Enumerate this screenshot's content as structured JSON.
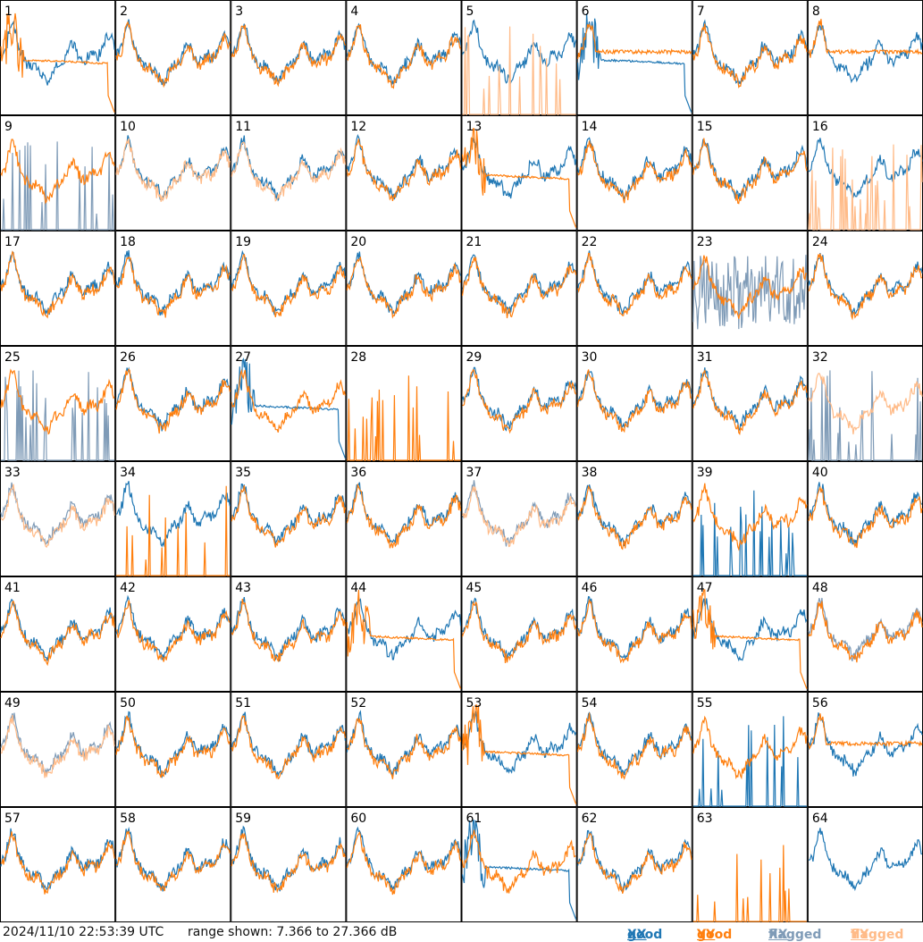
{
  "footer": {
    "timestamp": "2024/11/10 22:53:39 UTC",
    "range_text": "range shown: 7.366 to 27.366 dB",
    "legend": [
      {
        "word": "good",
        "pol": "XX",
        "color": "#1f77b4"
      },
      {
        "word": "good",
        "pol": "YY",
        "color": "#ff7f0e"
      },
      {
        "word": "flagged",
        "pol": "XX",
        "color": "#7f9bb7"
      },
      {
        "word": "flagged",
        "pol": "YY",
        "color": "#ffbb88"
      }
    ]
  },
  "colors": {
    "good_xx": "#1f77b4",
    "good_yy": "#ff7f0e",
    "flagged_xx": "#7f9bb7",
    "flagged_yy": "#ffbb88",
    "frame": "#000000"
  },
  "chart_data": {
    "type": "line",
    "layout": "8x8 small multiples",
    "ylim": [
      7.366,
      27.366
    ],
    "yunit": "dB",
    "panels": [
      {
        "label": "1",
        "xx": {
          "status": "good",
          "shape": "normal"
        },
        "yy": {
          "status": "good",
          "shape": "dropout"
        }
      },
      {
        "label": "2",
        "xx": {
          "status": "good",
          "shape": "normal"
        },
        "yy": {
          "status": "good",
          "shape": "normal"
        }
      },
      {
        "label": "3",
        "xx": {
          "status": "good",
          "shape": "normal"
        },
        "yy": {
          "status": "good",
          "shape": "normal"
        }
      },
      {
        "label": "4",
        "xx": {
          "status": "good",
          "shape": "normal"
        },
        "yy": {
          "status": "good",
          "shape": "normal"
        }
      },
      {
        "label": "5",
        "xx": {
          "status": "good",
          "shape": "normal"
        },
        "yy": {
          "status": "flagged",
          "shape": "spiky"
        }
      },
      {
        "label": "6",
        "xx": {
          "status": "good",
          "shape": "dropout"
        },
        "yy": {
          "status": "good",
          "shape": "flat"
        }
      },
      {
        "label": "7",
        "xx": {
          "status": "good",
          "shape": "normal"
        },
        "yy": {
          "status": "good",
          "shape": "normal"
        }
      },
      {
        "label": "8",
        "xx": {
          "status": "good",
          "shape": "normal"
        },
        "yy": {
          "status": "good",
          "shape": "flat"
        }
      },
      {
        "label": "9",
        "xx": {
          "status": "flagged",
          "shape": "spiky"
        },
        "yy": {
          "status": "good",
          "shape": "normal"
        }
      },
      {
        "label": "10",
        "xx": {
          "status": "good",
          "shape": "normal"
        },
        "yy": {
          "status": "flagged",
          "shape": "normal"
        }
      },
      {
        "label": "11",
        "xx": {
          "status": "good",
          "shape": "normal"
        },
        "yy": {
          "status": "flagged",
          "shape": "normal"
        }
      },
      {
        "label": "12",
        "xx": {
          "status": "good",
          "shape": "normal"
        },
        "yy": {
          "status": "good",
          "shape": "normal"
        }
      },
      {
        "label": "13",
        "xx": {
          "status": "good",
          "shape": "normal"
        },
        "yy": {
          "status": "good",
          "shape": "dropout"
        }
      },
      {
        "label": "14",
        "xx": {
          "status": "good",
          "shape": "normal"
        },
        "yy": {
          "status": "good",
          "shape": "normal"
        }
      },
      {
        "label": "15",
        "xx": {
          "status": "good",
          "shape": "normal"
        },
        "yy": {
          "status": "good",
          "shape": "normal"
        }
      },
      {
        "label": "16",
        "xx": {
          "status": "good",
          "shape": "normal"
        },
        "yy": {
          "status": "flagged",
          "shape": "spiky"
        }
      },
      {
        "label": "17",
        "xx": {
          "status": "good",
          "shape": "normal"
        },
        "yy": {
          "status": "good",
          "shape": "normal"
        }
      },
      {
        "label": "18",
        "xx": {
          "status": "good",
          "shape": "normal"
        },
        "yy": {
          "status": "good",
          "shape": "normal"
        }
      },
      {
        "label": "19",
        "xx": {
          "status": "good",
          "shape": "normal"
        },
        "yy": {
          "status": "good",
          "shape": "normal"
        }
      },
      {
        "label": "20",
        "xx": {
          "status": "good",
          "shape": "normal"
        },
        "yy": {
          "status": "good",
          "shape": "normal"
        }
      },
      {
        "label": "21",
        "xx": {
          "status": "good",
          "shape": "normal"
        },
        "yy": {
          "status": "good",
          "shape": "normal"
        }
      },
      {
        "label": "22",
        "xx": {
          "status": "good",
          "shape": "normal"
        },
        "yy": {
          "status": "good",
          "shape": "normal"
        }
      },
      {
        "label": "23",
        "xx": {
          "status": "flagged",
          "shape": "noisy"
        },
        "yy": {
          "status": "good",
          "shape": "normal"
        }
      },
      {
        "label": "24",
        "xx": {
          "status": "good",
          "shape": "normal"
        },
        "yy": {
          "status": "good",
          "shape": "normal"
        }
      },
      {
        "label": "25",
        "xx": {
          "status": "flagged",
          "shape": "spiky"
        },
        "yy": {
          "status": "good",
          "shape": "normal"
        }
      },
      {
        "label": "26",
        "xx": {
          "status": "good",
          "shape": "normal"
        },
        "yy": {
          "status": "good",
          "shape": "normal"
        }
      },
      {
        "label": "27",
        "xx": {
          "status": "good",
          "shape": "dropout"
        },
        "yy": {
          "status": "good",
          "shape": "normal"
        }
      },
      {
        "label": "28",
        "xx": {
          "status": "none",
          "shape": "none"
        },
        "yy": {
          "status": "good",
          "shape": "spiky"
        }
      },
      {
        "label": "29",
        "xx": {
          "status": "good",
          "shape": "normal"
        },
        "yy": {
          "status": "good",
          "shape": "normal"
        }
      },
      {
        "label": "30",
        "xx": {
          "status": "good",
          "shape": "normal"
        },
        "yy": {
          "status": "good",
          "shape": "normal"
        }
      },
      {
        "label": "31",
        "xx": {
          "status": "good",
          "shape": "normal"
        },
        "yy": {
          "status": "good",
          "shape": "normal"
        }
      },
      {
        "label": "32",
        "xx": {
          "status": "flagged",
          "shape": "spiky"
        },
        "yy": {
          "status": "flagged",
          "shape": "normal"
        }
      },
      {
        "label": "33",
        "xx": {
          "status": "flagged",
          "shape": "normal"
        },
        "yy": {
          "status": "flagged",
          "shape": "normal"
        }
      },
      {
        "label": "34",
        "xx": {
          "status": "good",
          "shape": "normal"
        },
        "yy": {
          "status": "good",
          "shape": "spiky"
        }
      },
      {
        "label": "35",
        "xx": {
          "status": "good",
          "shape": "normal"
        },
        "yy": {
          "status": "good",
          "shape": "normal"
        }
      },
      {
        "label": "36",
        "xx": {
          "status": "good",
          "shape": "normal"
        },
        "yy": {
          "status": "good",
          "shape": "normal"
        }
      },
      {
        "label": "37",
        "xx": {
          "status": "flagged",
          "shape": "normal"
        },
        "yy": {
          "status": "flagged",
          "shape": "normal"
        }
      },
      {
        "label": "38",
        "xx": {
          "status": "good",
          "shape": "normal"
        },
        "yy": {
          "status": "good",
          "shape": "normal"
        }
      },
      {
        "label": "39",
        "xx": {
          "status": "good",
          "shape": "spiky"
        },
        "yy": {
          "status": "good",
          "shape": "normal"
        }
      },
      {
        "label": "40",
        "xx": {
          "status": "good",
          "shape": "normal"
        },
        "yy": {
          "status": "good",
          "shape": "normal"
        }
      },
      {
        "label": "41",
        "xx": {
          "status": "good",
          "shape": "normal"
        },
        "yy": {
          "status": "good",
          "shape": "normal"
        }
      },
      {
        "label": "42",
        "xx": {
          "status": "good",
          "shape": "normal"
        },
        "yy": {
          "status": "good",
          "shape": "normal"
        }
      },
      {
        "label": "43",
        "xx": {
          "status": "good",
          "shape": "normal"
        },
        "yy": {
          "status": "good",
          "shape": "normal"
        }
      },
      {
        "label": "44",
        "xx": {
          "status": "good",
          "shape": "normal"
        },
        "yy": {
          "status": "good",
          "shape": "dropout"
        }
      },
      {
        "label": "45",
        "xx": {
          "status": "good",
          "shape": "normal"
        },
        "yy": {
          "status": "good",
          "shape": "normal"
        }
      },
      {
        "label": "46",
        "xx": {
          "status": "good",
          "shape": "normal"
        },
        "yy": {
          "status": "good",
          "shape": "normal"
        }
      },
      {
        "label": "47",
        "xx": {
          "status": "good",
          "shape": "normal"
        },
        "yy": {
          "status": "good",
          "shape": "dropout"
        }
      },
      {
        "label": "48",
        "xx": {
          "status": "flagged",
          "shape": "normal"
        },
        "yy": {
          "status": "good",
          "shape": "normal"
        }
      },
      {
        "label": "49",
        "xx": {
          "status": "flagged",
          "shape": "normal"
        },
        "yy": {
          "status": "flagged",
          "shape": "normal"
        }
      },
      {
        "label": "50",
        "xx": {
          "status": "good",
          "shape": "normal"
        },
        "yy": {
          "status": "good",
          "shape": "normal"
        }
      },
      {
        "label": "51",
        "xx": {
          "status": "good",
          "shape": "normal"
        },
        "yy": {
          "status": "good",
          "shape": "normal"
        }
      },
      {
        "label": "52",
        "xx": {
          "status": "good",
          "shape": "normal"
        },
        "yy": {
          "status": "good",
          "shape": "normal"
        }
      },
      {
        "label": "53",
        "xx": {
          "status": "good",
          "shape": "normal"
        },
        "yy": {
          "status": "good",
          "shape": "dropout"
        }
      },
      {
        "label": "54",
        "xx": {
          "status": "good",
          "shape": "normal"
        },
        "yy": {
          "status": "good",
          "shape": "normal"
        }
      },
      {
        "label": "55",
        "xx": {
          "status": "good",
          "shape": "spiky"
        },
        "yy": {
          "status": "good",
          "shape": "normal"
        }
      },
      {
        "label": "56",
        "xx": {
          "status": "good",
          "shape": "normal"
        },
        "yy": {
          "status": "good",
          "shape": "flat"
        }
      },
      {
        "label": "57",
        "xx": {
          "status": "good",
          "shape": "normal"
        },
        "yy": {
          "status": "good",
          "shape": "normal"
        }
      },
      {
        "label": "58",
        "xx": {
          "status": "good",
          "shape": "normal"
        },
        "yy": {
          "status": "good",
          "shape": "normal"
        }
      },
      {
        "label": "59",
        "xx": {
          "status": "good",
          "shape": "normal"
        },
        "yy": {
          "status": "good",
          "shape": "normal"
        }
      },
      {
        "label": "60",
        "xx": {
          "status": "good",
          "shape": "normal"
        },
        "yy": {
          "status": "good",
          "shape": "normal"
        }
      },
      {
        "label": "61",
        "xx": {
          "status": "good",
          "shape": "dropout"
        },
        "yy": {
          "status": "good",
          "shape": "normal"
        }
      },
      {
        "label": "62",
        "xx": {
          "status": "good",
          "shape": "normal"
        },
        "yy": {
          "status": "good",
          "shape": "normal"
        }
      },
      {
        "label": "63",
        "xx": {
          "status": "none",
          "shape": "none"
        },
        "yy": {
          "status": "good",
          "shape": "spiky"
        }
      },
      {
        "label": "64",
        "xx": {
          "status": "good",
          "shape": "normal"
        },
        "yy": {
          "status": "none",
          "shape": "none"
        }
      }
    ]
  }
}
